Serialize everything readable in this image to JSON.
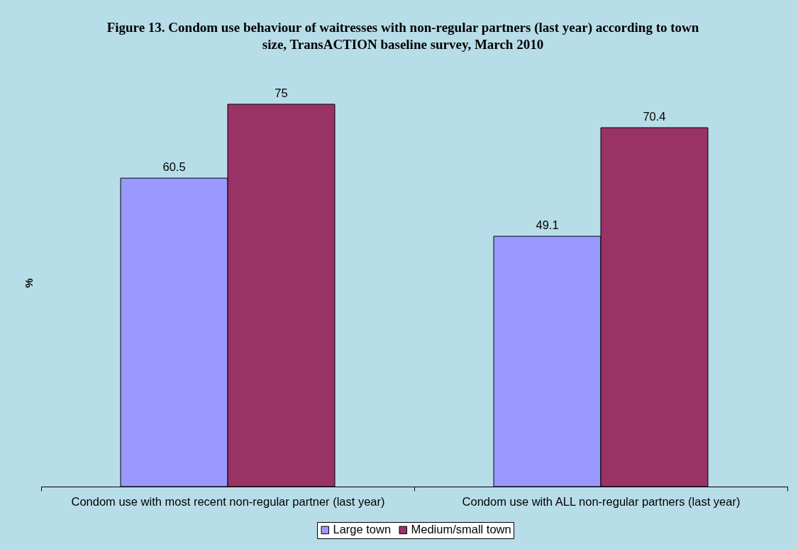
{
  "chart_data": {
    "type": "bar",
    "title": "Figure 13. Condom use behaviour of waitresses with non-regular partners (last year) according to town size, TransACTION baseline survey, March 2010",
    "ylabel": "%",
    "categories": [
      "Condom use with most recent non-regular partner (last year)",
      "Condom use with ALL non-regular partners (last year)"
    ],
    "series": [
      {
        "name": "Large town",
        "color": "#9999ff",
        "values": [
          60.5,
          49.1
        ]
      },
      {
        "name": "Medium/small town",
        "color": "#993366",
        "values": [
          75,
          70.4
        ]
      }
    ],
    "data_labels": true,
    "legend": "bottom",
    "tick_labels": "x"
  }
}
